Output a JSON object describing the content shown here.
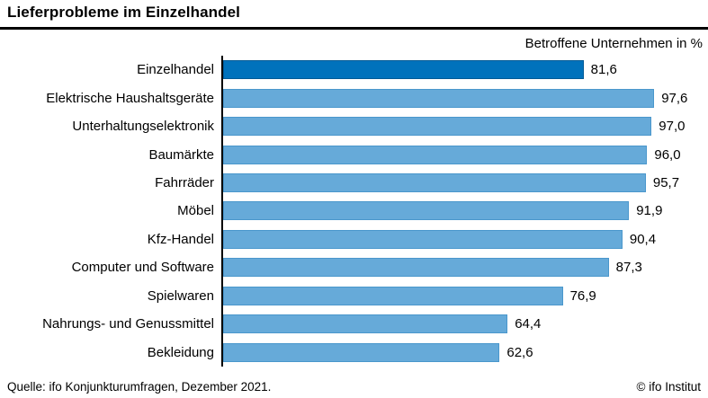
{
  "header": {
    "title": "Lieferprobleme im Einzelhandel",
    "subtitle": "Betroffene Unternehmen in %"
  },
  "footer": {
    "source": "Quelle: ifo Konjunkturumfragen, Dezember 2021.",
    "copyright": "© ifo Institut"
  },
  "colors": {
    "highlight_bar": "#0072bc",
    "highlight_border": "#005a96",
    "default_bar": "#66aad9",
    "default_border": "#4a97cc",
    "axis": "#000000",
    "text": "#000000",
    "background": "#ffffff"
  },
  "chart_data": {
    "type": "bar",
    "orientation": "horizontal",
    "title": "Lieferprobleme im Einzelhandel",
    "subtitle": "Betroffene Unternehmen in %",
    "xlabel": "Betroffene Unternehmen in %",
    "ylabel": "",
    "xlim": [
      0,
      100
    ],
    "grid": false,
    "legend": false,
    "categories": [
      "Einzelhandel",
      "Elektrische Haushaltsgeräte",
      "Unterhaltungselektronik",
      "Baumärkte",
      "Fahrräder",
      "Möbel",
      "Kfz-Handel",
      "Computer und Software",
      "Spielwaren",
      "Nahrungs- und Genussmittel",
      "Bekleidung"
    ],
    "values": [
      81.6,
      97.6,
      97.0,
      96.0,
      95.7,
      91.9,
      90.4,
      87.3,
      76.9,
      64.4,
      62.6
    ],
    "value_labels": [
      "81,6",
      "97,6",
      "97,0",
      "96,0",
      "95,7",
      "91,9",
      "90,4",
      "87,3",
      "76,9",
      "64,4",
      "62,6"
    ],
    "highlighted_category_index": 0
  }
}
